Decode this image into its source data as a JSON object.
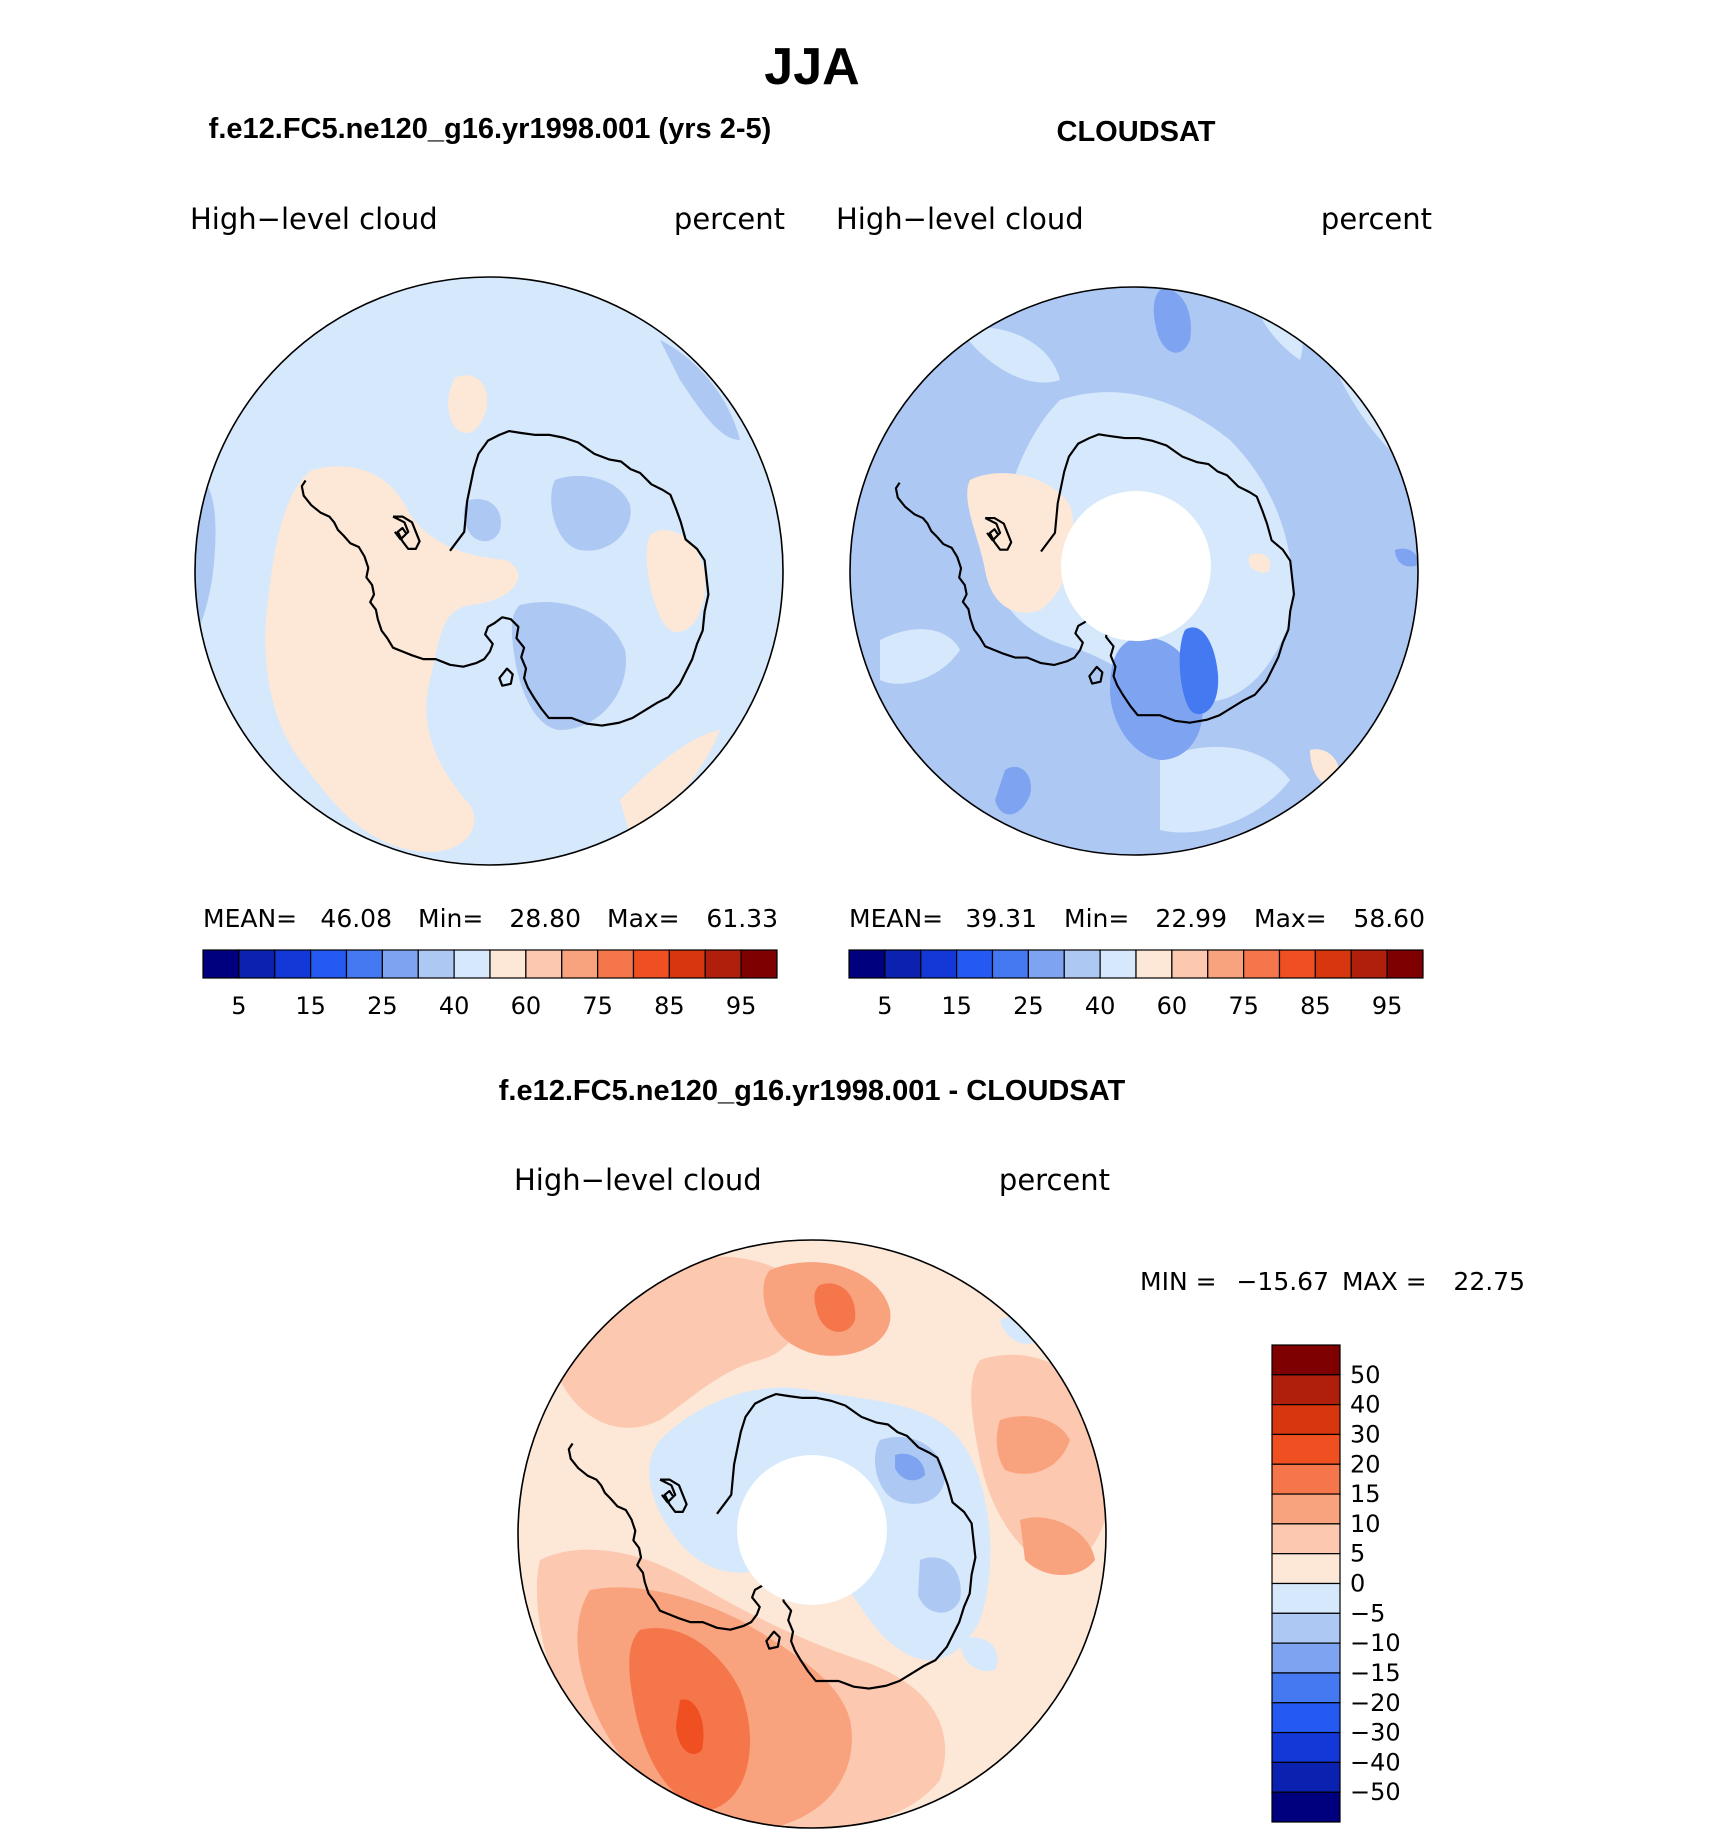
{
  "figure": {
    "season": "JJA",
    "panel_titles": {
      "model": "f.e12.FC5.ne120_g16.yr1998.001 (yrs 2-5)",
      "obs": "CLOUDSAT",
      "diff": "f.e12.FC5.ne120_g16.yr1998.001 - CLOUDSAT"
    }
  },
  "panels": {
    "model": {
      "variable": "High−level cloud",
      "units": "percent",
      "stats": {
        "mean_label": "MEAN=",
        "mean": "46.08",
        "min_label": "Min=",
        "min": "28.80",
        "max_label": "Max=",
        "max": "61.33"
      }
    },
    "obs": {
      "variable": "High−level cloud",
      "units": "percent",
      "stats": {
        "mean_label": "MEAN=",
        "mean": "39.31",
        "min_label": "Min=",
        "min": "22.99",
        "max_label": "Max=",
        "max": "58.60"
      }
    },
    "diff": {
      "variable": "High−level cloud",
      "units": "percent",
      "stats": {
        "min_label": "MIN =",
        "min": "−15.67",
        "max_label": "MAX =",
        "max": "22.75"
      }
    }
  },
  "colorbars": {
    "abs": {
      "colors": [
        "#00007f",
        "#0b22b0",
        "#1238d8",
        "#2459f2",
        "#4479f2",
        "#7ea4f1",
        "#aec8f4",
        "#d6e8fb",
        "#fde8d8",
        "#fcc9b0",
        "#f9a27e",
        "#f4764a",
        "#f04f22",
        "#d7360f",
        "#b01e0c",
        "#7e0000"
      ],
      "tick_labels": [
        "5",
        "15",
        "25",
        "40",
        "60",
        "75",
        "85",
        "95"
      ]
    },
    "diff": {
      "colors": [
        "#00007f",
        "#0b22b0",
        "#1238d8",
        "#2459f2",
        "#4479f2",
        "#7ea4f1",
        "#aec8f4",
        "#d6e8fb",
        "#fde8d8",
        "#fcc9b0",
        "#f9a27e",
        "#f4764a",
        "#f04f22",
        "#d7360f",
        "#b01e0c",
        "#7e0000"
      ],
      "tick_labels": [
        "50",
        "40",
        "30",
        "20",
        "15",
        "10",
        "5",
        "0",
        "−5",
        "−10",
        "−15",
        "−20",
        "−30",
        "−40",
        "−50"
      ]
    }
  },
  "palette": {
    "light_blue": "#d6e8fb",
    "blue": "#aec8f4",
    "mid_blue": "#7ea4f1",
    "deep_blue": "#4479f2",
    "peach": "#fde8d8",
    "salmon": "#fcc9b0",
    "orange": "#f9a27e",
    "red_orange": "#f4764a",
    "red": "#f04f22"
  }
}
